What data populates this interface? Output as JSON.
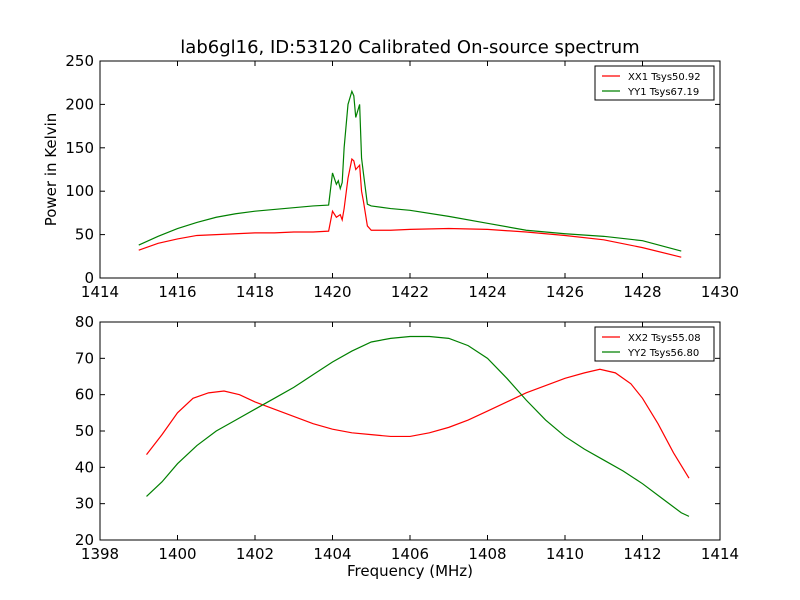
{
  "title": "lab6gl16, ID:53120 Calibrated On-source spectrum",
  "chart_data": [
    {
      "type": "line",
      "ylabel": "Power in Kelvin",
      "xlabel": "",
      "xlim": [
        1414,
        1430
      ],
      "ylim": [
        0,
        250
      ],
      "xticks": [
        "1414",
        "1416",
        "1418",
        "1420",
        "1422",
        "1424",
        "1426",
        "1428",
        "1430"
      ],
      "yticks": [
        "0",
        "50",
        "100",
        "150",
        "200",
        "250"
      ],
      "legend_position": "top-right",
      "series": [
        {
          "name": "XX1 Tsys50.92",
          "color": "#ff0000",
          "x": [
            1415.0,
            1415.5,
            1416.0,
            1416.5,
            1417.0,
            1417.5,
            1418.0,
            1418.5,
            1419.0,
            1419.5,
            1419.9,
            1420.0,
            1420.1,
            1420.2,
            1420.25,
            1420.3,
            1420.4,
            1420.5,
            1420.55,
            1420.6,
            1420.7,
            1420.75,
            1420.8,
            1420.9,
            1421.0,
            1421.5,
            1422.0,
            1423.0,
            1424.0,
            1425.0,
            1426.0,
            1427.0,
            1428.0,
            1429.0
          ],
          "y": [
            32,
            40,
            45,
            49,
            50,
            51,
            52,
            52,
            53,
            53,
            54,
            77,
            70,
            73,
            67,
            80,
            115,
            137,
            135,
            125,
            130,
            100,
            88,
            60,
            55,
            55,
            56,
            57,
            56,
            53,
            49,
            44,
            35,
            24
          ]
        },
        {
          "name": "YY1 Tsys67.19",
          "color": "#008000",
          "x": [
            1415.0,
            1415.5,
            1416.0,
            1416.5,
            1417.0,
            1417.5,
            1418.0,
            1418.5,
            1419.0,
            1419.5,
            1419.9,
            1420.0,
            1420.1,
            1420.15,
            1420.2,
            1420.25,
            1420.3,
            1420.4,
            1420.5,
            1420.55,
            1420.6,
            1420.7,
            1420.75,
            1420.8,
            1420.9,
            1421.0,
            1421.5,
            1422.0,
            1423.0,
            1424.0,
            1425.0,
            1426.0,
            1427.0,
            1428.0,
            1429.0
          ],
          "y": [
            38,
            48,
            57,
            64,
            70,
            74,
            77,
            79,
            81,
            83,
            84,
            121,
            108,
            112,
            103,
            110,
            150,
            200,
            215,
            210,
            185,
            200,
            138,
            120,
            85,
            83,
            80,
            78,
            71,
            63,
            55,
            51,
            48,
            43,
            31
          ]
        }
      ]
    },
    {
      "type": "line",
      "xlabel": "Frequency (MHz)",
      "ylabel": "",
      "xlim": [
        1398,
        1414
      ],
      "ylim": [
        20,
        80
      ],
      "xticks": [
        "1398",
        "1400",
        "1402",
        "1404",
        "1406",
        "1408",
        "1410",
        "1412",
        "1414"
      ],
      "yticks": [
        "20",
        "30",
        "40",
        "50",
        "60",
        "70",
        "80"
      ],
      "legend_position": "top-right",
      "series": [
        {
          "name": "XX2 Tsys55.08",
          "color": "#ff0000",
          "x": [
            1399.2,
            1399.6,
            1400.0,
            1400.4,
            1400.8,
            1401.2,
            1401.6,
            1402.0,
            1402.5,
            1403.0,
            1403.5,
            1404.0,
            1404.5,
            1405.0,
            1405.5,
            1406.0,
            1406.5,
            1407.0,
            1407.5,
            1408.0,
            1408.5,
            1409.0,
            1409.5,
            1410.0,
            1410.5,
            1410.9,
            1411.3,
            1411.7,
            1412.0,
            1412.4,
            1412.8,
            1413.2
          ],
          "y": [
            43.5,
            49,
            55,
            59,
            60.5,
            61,
            60,
            58,
            56,
            54,
            52,
            50.5,
            49.5,
            49,
            48.5,
            48.5,
            49.5,
            51,
            53,
            55.5,
            58,
            60.5,
            62.5,
            64.5,
            66,
            67,
            66,
            63,
            59,
            52,
            44,
            37
          ]
        },
        {
          "name": "YY2 Tsys56.80",
          "color": "#008000",
          "x": [
            1399.2,
            1399.6,
            1400.0,
            1400.5,
            1401.0,
            1401.5,
            1402.0,
            1402.5,
            1403.0,
            1403.5,
            1404.0,
            1404.5,
            1405.0,
            1405.5,
            1406.0,
            1406.5,
            1407.0,
            1407.5,
            1408.0,
            1408.5,
            1409.0,
            1409.5,
            1410.0,
            1410.5,
            1411.0,
            1411.5,
            1412.0,
            1412.5,
            1413.0,
            1413.2
          ],
          "y": [
            32,
            36,
            41,
            46,
            50,
            53,
            56,
            59,
            62,
            65.5,
            69,
            72,
            74.5,
            75.5,
            76,
            76,
            75.5,
            73.5,
            70,
            64.5,
            58.5,
            53,
            48.5,
            45,
            42,
            39,
            35.5,
            31.5,
            27.5,
            26.5
          ]
        }
      ]
    }
  ]
}
